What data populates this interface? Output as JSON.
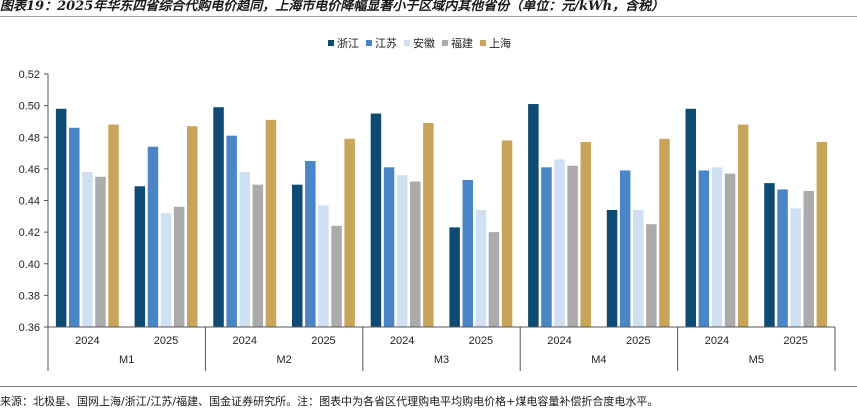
{
  "title": "图表19：2025年华东四省综合代购电价趋同，上海市电价降幅显著小于区域内其他省份（单位：元/kWh，含税）",
  "source": "来源：北极星、国网上海/浙江/江苏/福建、国金证券研究所。注：图表中为各省区代理购电平均购电价格+煤电容量补偿折合度电水平。",
  "chart_data": {
    "type": "bar",
    "groups": [
      {
        "label": "M1",
        "categories": [
          "2024",
          "2025"
        ]
      },
      {
        "label": "M2",
        "categories": [
          "2024",
          "2025"
        ]
      },
      {
        "label": "M3",
        "categories": [
          "2024",
          "2025"
        ]
      },
      {
        "label": "M4",
        "categories": [
          "2024",
          "2025"
        ]
      },
      {
        "label": "M5",
        "categories": [
          "2024",
          "2025"
        ]
      }
    ],
    "series": [
      {
        "name": "浙江",
        "color": "#0f4a72",
        "values": [
          0.498,
          0.449,
          0.499,
          0.45,
          0.495,
          0.423,
          0.501,
          0.434,
          0.498,
          0.451
        ]
      },
      {
        "name": "江苏",
        "color": "#4a86c5",
        "values": [
          0.486,
          0.474,
          0.481,
          0.465,
          0.461,
          0.453,
          0.461,
          0.459,
          0.459,
          0.447
        ]
      },
      {
        "name": "安徽",
        "color": "#cfe0f2",
        "values": [
          0.458,
          0.432,
          0.458,
          0.437,
          0.456,
          0.434,
          0.466,
          0.434,
          0.461,
          0.435
        ]
      },
      {
        "name": "福建",
        "color": "#ababab",
        "values": [
          0.455,
          0.436,
          0.45,
          0.424,
          0.452,
          0.42,
          0.462,
          0.425,
          0.457,
          0.446
        ]
      },
      {
        "name": "上海",
        "color": "#c8a45a",
        "values": [
          0.488,
          0.487,
          0.491,
          0.479,
          0.489,
          0.478,
          0.477,
          0.479,
          0.488,
          0.477
        ]
      }
    ],
    "ylim": [
      0.36,
      0.52
    ],
    "yticks": [
      "0.36",
      "0.38",
      "0.40",
      "0.42",
      "0.44",
      "0.46",
      "0.48",
      "0.50",
      "0.52"
    ],
    "legend_position": "top-center",
    "grid": false
  }
}
